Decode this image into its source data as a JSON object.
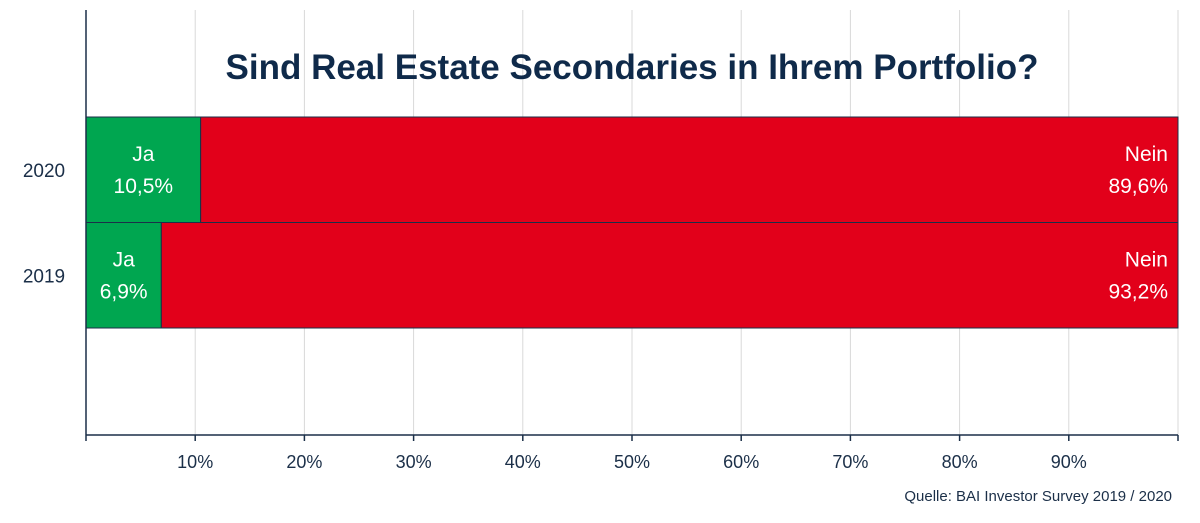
{
  "chart_data": {
    "type": "bar",
    "orientation": "horizontal",
    "stacked": true,
    "title": "Sind Real Estate Secondaries in Ihrem Portfolio?",
    "categories": [
      "2020",
      "2019"
    ],
    "series": [
      {
        "name": "Ja",
        "values": [
          10.5,
          6.9
        ],
        "labels": [
          "10,5%",
          "6,9%"
        ],
        "color": "#00a650"
      },
      {
        "name": "Nein",
        "values": [
          89.6,
          93.2
        ],
        "labels": [
          "89,6%",
          "93,2%"
        ],
        "color": "#e2001a"
      }
    ],
    "xlim": [
      0,
      100
    ],
    "xticks": [
      10,
      20,
      30,
      40,
      50,
      60,
      70,
      80,
      90
    ],
    "xtick_labels": [
      "10%",
      "20%",
      "30%",
      "40%",
      "50%",
      "60%",
      "70%",
      "80%",
      "90%"
    ],
    "grid": true,
    "axis_color": "#1b2f48",
    "grid_color": "#d9d9d9"
  },
  "footer": {
    "source": "Quelle: BAI Investor Survey 2019 / 2020"
  }
}
